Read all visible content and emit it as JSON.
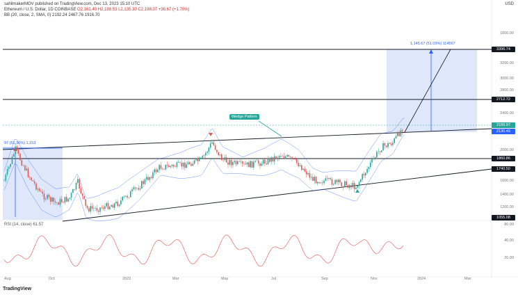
{
  "header": {
    "author": "sahilmakerMOV published on TradingView.com, Dec 13, 2023 15:10 UTC",
    "symbol_line": "Ethereum / U.S. Dollar, 1D COINBASE",
    "ohlc": "O2,161.40  H2,198.53  L2,135.30  C2,198.07  +36.67 (+1.70%)",
    "bb_line": "BB (20, close, 2, SMA, 0)  2192.24  2467.76  1916.70"
  },
  "annotations": {
    "wedge_label": "Wedge Pattern",
    "target_label": "1,145.67 (51.03%) 114567",
    "left_box_label": "97 (51.36%) 1,153"
  },
  "price_labels": {
    "p1": "3396.74",
    "p2": "2712.72",
    "p3": "2189.97",
    "p4": "2130.49",
    "p5": "1860.86",
    "p6": "1740.50",
    "p7": "1055.08"
  },
  "right_axis": [
    "1800.00",
    "3200.00",
    "3000.00",
    "2800.00",
    "2400.00",
    "2000.00",
    "1600.00",
    "1400.00",
    "1200.00",
    "1000.00"
  ],
  "rsi": {
    "header": "RSI (14, close) 61.57",
    "axis": [
      "80.00",
      "40.00",
      "20.00"
    ]
  },
  "time_axis": [
    "Aug",
    "Oct",
    "2023",
    "Mar",
    "May",
    "Jul",
    "Sep",
    "Nov",
    "2024",
    "Mar"
  ],
  "top_right": "USD",
  "logo": "TradingView",
  "colors": {
    "up": "#26a69a",
    "down": "#ef5350",
    "box": "#dbe6fb",
    "line": "#131722",
    "rsi": "#e5534b",
    "bb": "#2962ff"
  }
}
